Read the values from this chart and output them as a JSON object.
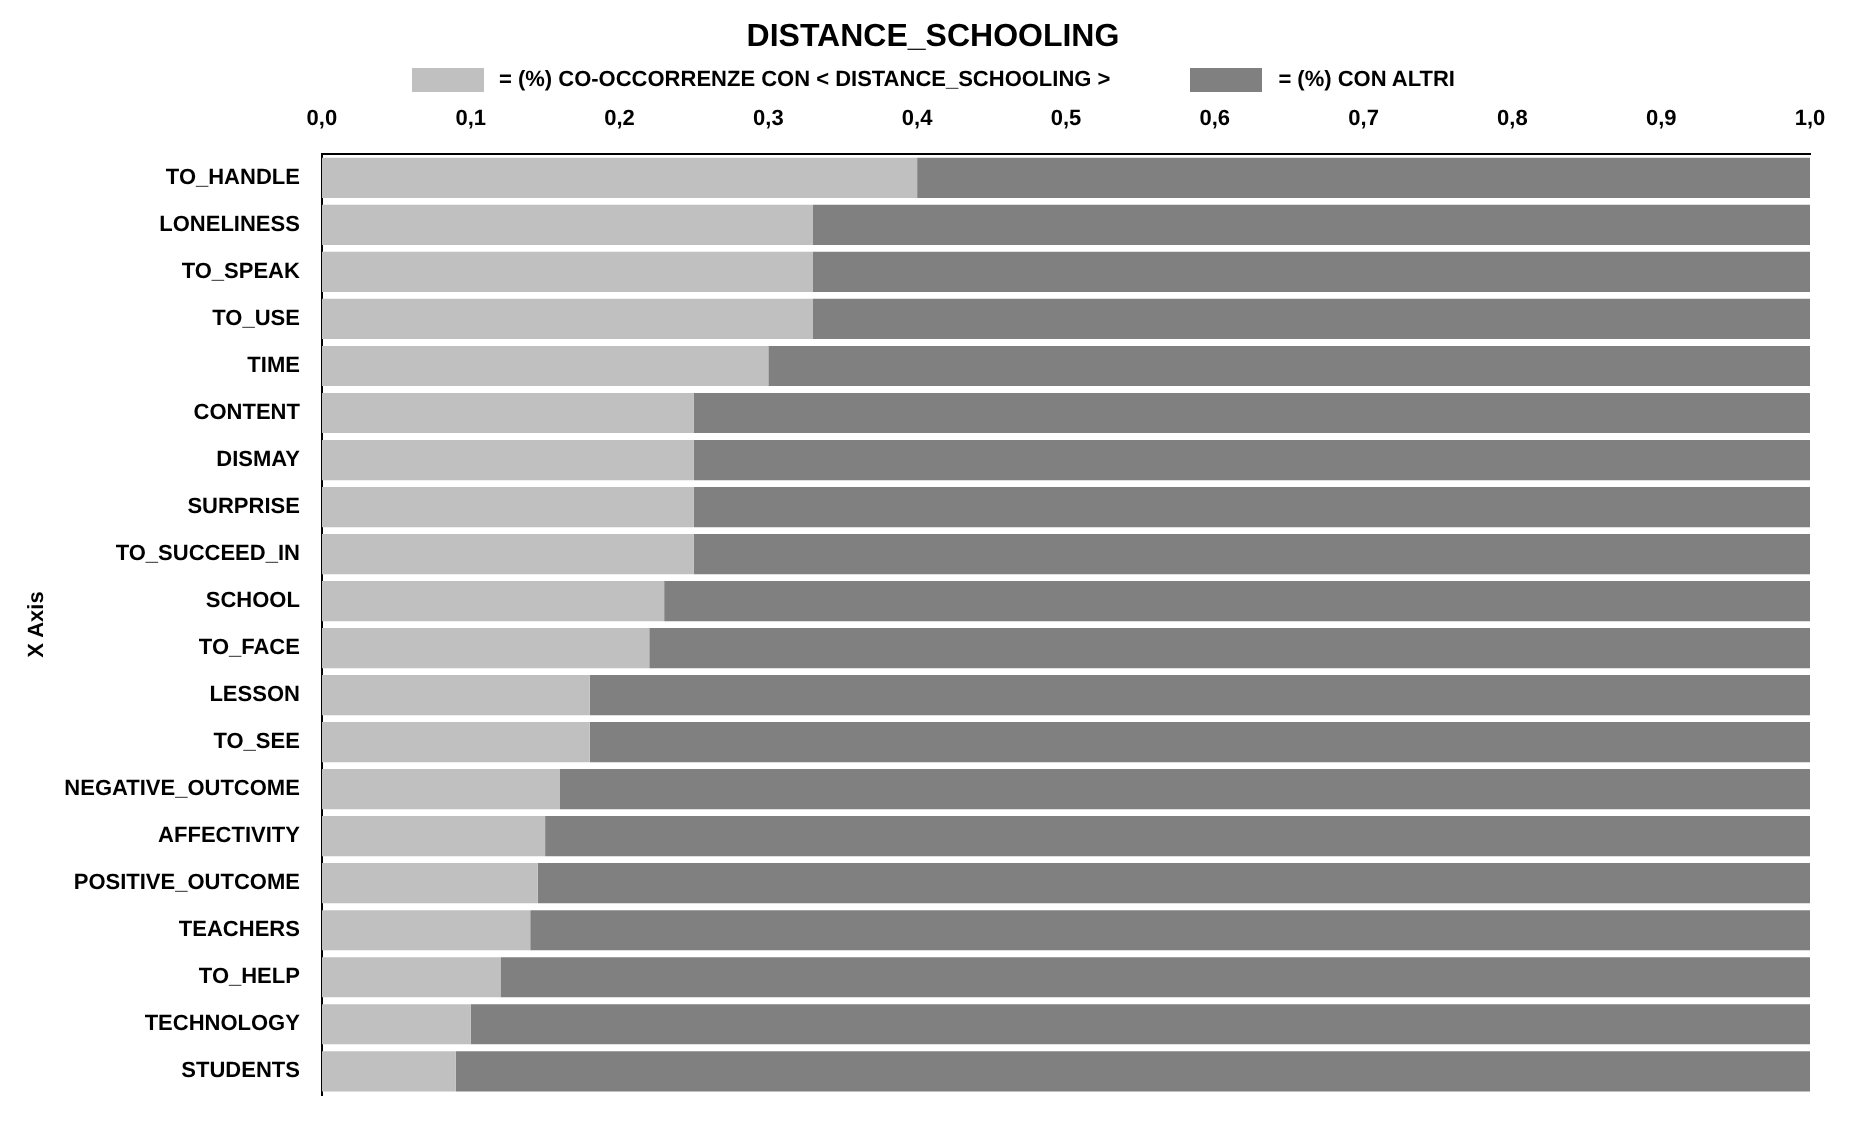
{
  "chart_data": {
    "type": "bar",
    "orientation": "horizontal",
    "stacked": true,
    "title": "DISTANCE_SCHOOLING",
    "ylabel": "X Axis",
    "categories": [
      "TO_HANDLE",
      "LONELINESS",
      "TO_SPEAK",
      "TO_USE",
      "TIME",
      "CONTENT",
      "DISMAY",
      "SURPRISE",
      "TO_SUCCEED_IN",
      "SCHOOL",
      "TO_FACE",
      "LESSON",
      "TO_SEE",
      "NEGATIVE_OUTCOME",
      "AFFECTIVITY",
      "POSITIVE_OUTCOME",
      "TEACHERS",
      "TO_HELP",
      "TECHNOLOGY",
      "STUDENTS"
    ],
    "series": [
      {
        "name": "= (%) CO-OCCORRENZE CON  < DISTANCE_SCHOOLING >",
        "color": "#c0c0c0",
        "values": [
          0.4,
          0.33,
          0.33,
          0.33,
          0.3,
          0.25,
          0.25,
          0.25,
          0.25,
          0.23,
          0.22,
          0.18,
          0.18,
          0.16,
          0.15,
          0.145,
          0.14,
          0.12,
          0.1,
          0.09
        ]
      },
      {
        "name": "= (%)  CON ALTRI",
        "color": "#808080",
        "values": [
          0.6,
          0.67,
          0.67,
          0.67,
          0.7,
          0.75,
          0.75,
          0.75,
          0.75,
          0.77,
          0.78,
          0.82,
          0.82,
          0.84,
          0.85,
          0.855,
          0.86,
          0.88,
          0.9,
          0.91
        ]
      }
    ],
    "xlim": [
      0,
      1
    ],
    "xticks": [
      {
        "value": 0,
        "label": "0,0"
      },
      {
        "value": 0.1,
        "label": "0,1"
      },
      {
        "value": 0.2,
        "label": "0,2"
      },
      {
        "value": 0.3,
        "label": "0,3"
      },
      {
        "value": 0.4,
        "label": "0,4"
      },
      {
        "value": 0.5,
        "label": "0,5"
      },
      {
        "value": 0.6,
        "label": "0,6"
      },
      {
        "value": 0.7,
        "label": "0,7"
      },
      {
        "value": 0.8,
        "label": "0,8"
      },
      {
        "value": 0.9,
        "label": "0,9"
      },
      {
        "value": 1,
        "label": "1,0"
      }
    ],
    "grid": false,
    "legend": "top"
  }
}
